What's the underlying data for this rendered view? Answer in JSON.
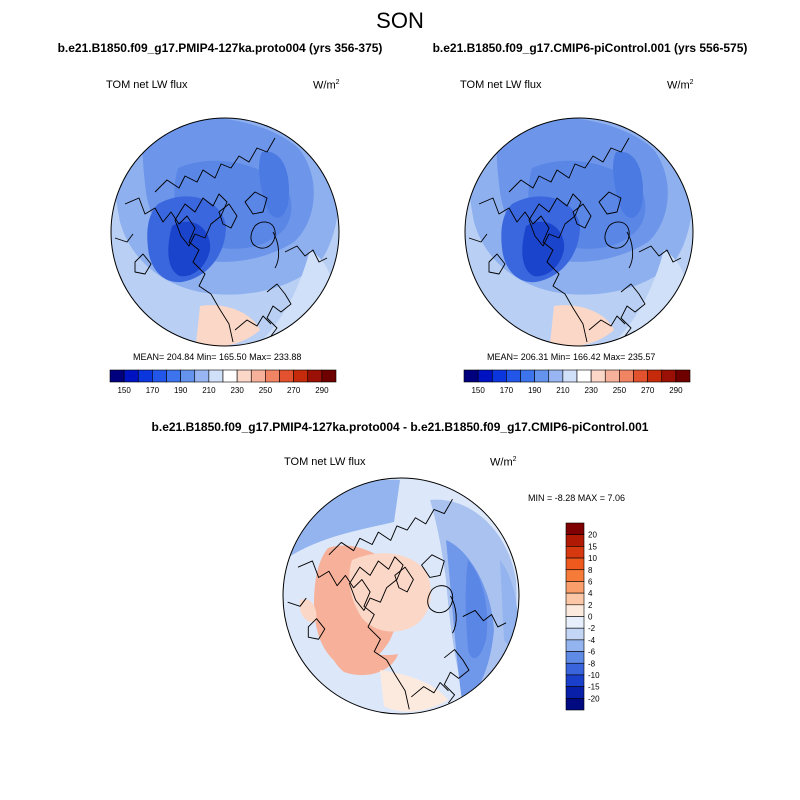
{
  "figure": {
    "season": "SON",
    "panels": [
      {
        "case": "b.e21.B1850.f09_g17.PMIP4-127ka.proto004 (yrs 356-375)",
        "variable": "TOM net LW flux",
        "units": "W/m",
        "units_exp": "2",
        "stats": "MEAN= 204.84  Min= 165.50  Max= 233.88"
      },
      {
        "case": "b.e21.B1850.f09_g17.CMIP6-piControl.001 (yrs 556-575)",
        "variable": "TOM net LW flux",
        "units": "W/m",
        "units_exp": "2",
        "stats": "MEAN= 206.31  Min= 166.42  Max= 235.57"
      }
    ],
    "difference": {
      "title": "b.e21.B1850.f09_g17.PMIP4-127ka.proto004 - b.e21.B1850.f09_g17.CMIP6-piControl.001",
      "variable": "TOM net LW flux",
      "units": "W/m",
      "units_exp": "2",
      "stats": "MIN =  -8.28 MAX =   7.06"
    }
  },
  "chart_data": [
    {
      "type": "heatmap",
      "projection": "north-polar-stereographic",
      "title": "b.e21.B1850.f09_g17.PMIP4-127ka.proto004 (yrs 356-375)",
      "variable": "TOM net LW flux",
      "units": "W/m^2",
      "mean": 204.84,
      "min": 165.5,
      "max": 233.88,
      "colorbar": {
        "levels": [
          150,
          160,
          170,
          180,
          190,
          200,
          210,
          220,
          230,
          240,
          250,
          260,
          270,
          280,
          290
        ],
        "tick_labels": [
          "150",
          "170",
          "190",
          "210",
          "230",
          "250",
          "270",
          "290"
        ],
        "colors": [
          "#00007f",
          "#0013c2",
          "#0b36dd",
          "#2156e8",
          "#3d74ec",
          "#6493ee",
          "#9ab6f2",
          "#cfe0f8",
          "#ffffff",
          "#fbd7c7",
          "#f7b19a",
          "#f08463",
          "#e2522e",
          "#c52b0a",
          "#9a1004",
          "#6e0000"
        ]
      }
    },
    {
      "type": "heatmap",
      "projection": "north-polar-stereographic",
      "title": "b.e21.B1850.f09_g17.CMIP6-piControl.001 (yrs 556-575)",
      "variable": "TOM net LW flux",
      "units": "W/m^2",
      "mean": 206.31,
      "min": 166.42,
      "max": 235.57,
      "colorbar": {
        "levels": [
          150,
          160,
          170,
          180,
          190,
          200,
          210,
          220,
          230,
          240,
          250,
          260,
          270,
          280,
          290
        ],
        "tick_labels": [
          "150",
          "170",
          "190",
          "210",
          "230",
          "250",
          "270",
          "290"
        ],
        "colors": [
          "#00007f",
          "#0013c2",
          "#0b36dd",
          "#2156e8",
          "#3d74ec",
          "#6493ee",
          "#9ab6f2",
          "#cfe0f8",
          "#ffffff",
          "#fbd7c7",
          "#f7b19a",
          "#f08463",
          "#e2522e",
          "#c52b0a",
          "#9a1004",
          "#6e0000"
        ]
      }
    },
    {
      "type": "heatmap",
      "projection": "north-polar-stereographic",
      "title": "b.e21.B1850.f09_g17.PMIP4-127ka.proto004 - b.e21.B1850.f09_g17.CMIP6-piControl.001",
      "variable": "TOM net LW flux",
      "units": "W/m^2",
      "min": -8.28,
      "max": 7.06,
      "colorbar": {
        "orientation": "vertical",
        "tick_labels": [
          "20",
          "15",
          "10",
          "8",
          "6",
          "4",
          "2",
          "0",
          "-2",
          "-4",
          "-6",
          "-8",
          "-10",
          "-15",
          "-20"
        ],
        "colors": [
          "#7f0000",
          "#b01a05",
          "#d6380f",
          "#ee5a1e",
          "#f77b38",
          "#fa9f6c",
          "#fcc7a6",
          "#fdeadf",
          "#e6effb",
          "#c3d6f5",
          "#93b4ee",
          "#5f8be6",
          "#3a64dc",
          "#1a3fcb",
          "#0820a9",
          "#000a80"
        ]
      }
    }
  ]
}
